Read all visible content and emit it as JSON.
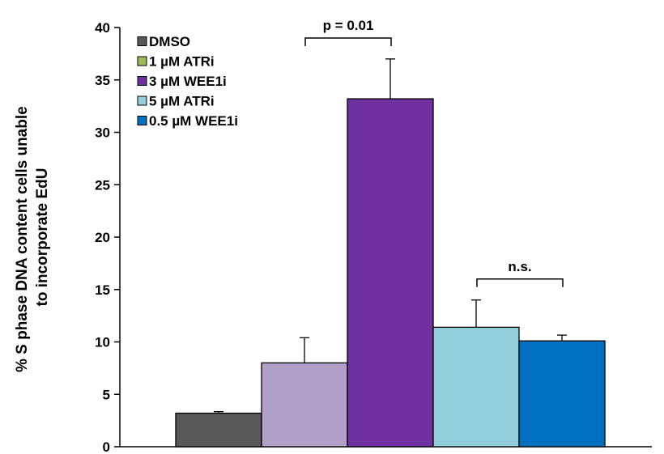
{
  "chart_data": {
    "type": "bar",
    "title": "",
    "xlabel": "",
    "ylabel_lines": [
      "% S phase DNA content cells unable",
      "to incorporate EdU"
    ],
    "ylim": [
      0,
      40
    ],
    "yticks": [
      0,
      5,
      10,
      15,
      20,
      25,
      30,
      35,
      40
    ],
    "grid": false,
    "legend_position": "top-left",
    "series": [
      {
        "name": "DMSO",
        "value": 3.2,
        "error": 0.15,
        "color": "#595959"
      },
      {
        "name": "1 µM ATRi",
        "value": 8.0,
        "error": 2.4,
        "color": "#b1a0c7"
      },
      {
        "name": "3 µM WEE1i",
        "value": 33.2,
        "error": 3.8,
        "color": "#7030a0"
      },
      {
        "name": "5 µM ATRi",
        "value": 11.4,
        "error": 2.6,
        "color": "#92cddc"
      },
      {
        "name": "0.5 µM WEE1i",
        "value": 10.1,
        "error": 0.55,
        "color": "#0070c0"
      }
    ],
    "legend_swatch_colors": [
      "#595959",
      "#9bbb59",
      "#7030a0",
      "#92cddc",
      "#0070c0"
    ],
    "annotations": [
      {
        "text": "p = 0.01",
        "from_series": 1,
        "to_series": 2,
        "y": 39
      },
      {
        "text": "n.s.",
        "from_series": 3,
        "to_series": 4,
        "y": 16
      }
    ]
  }
}
